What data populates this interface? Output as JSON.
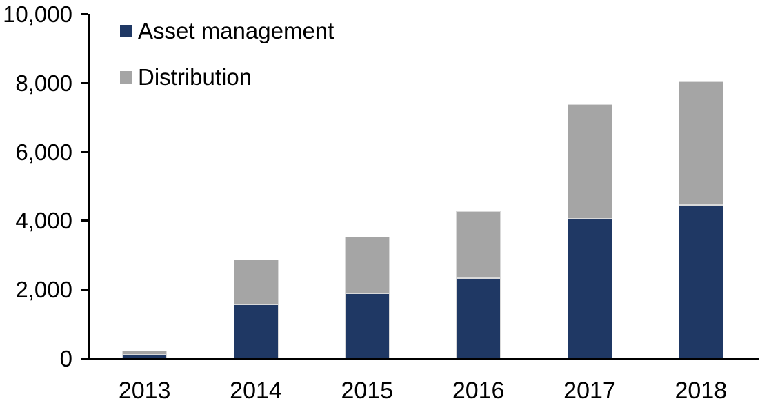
{
  "chart_data": {
    "type": "bar",
    "stacked": true,
    "title": "",
    "xlabel": "",
    "ylabel": "",
    "categories": [
      "2013",
      "2014",
      "2015",
      "2016",
      "2017",
      "2018"
    ],
    "series": [
      {
        "name": "Asset management",
        "color": "#1f3864",
        "values": [
          100,
          1570,
          1880,
          2320,
          4050,
          4440
        ]
      },
      {
        "name": "Distribution",
        "color": "#a5a5a5",
        "values": [
          115,
          1300,
          1640,
          1940,
          3330,
          3590
        ]
      }
    ],
    "totals": [
      215,
      2870,
      3520,
      4260,
      7380,
      8030
    ],
    "ylim": [
      0,
      10000
    ],
    "yticks": [
      {
        "value": 0,
        "label": "0"
      },
      {
        "value": 2000,
        "label": "2,000"
      },
      {
        "value": 4000,
        "label": "4,000"
      },
      {
        "value": 6000,
        "label": "6,000"
      },
      {
        "value": 8000,
        "label": "8,000"
      },
      {
        "value": 10000,
        "label": "10,000"
      }
    ],
    "grid": false,
    "legend_position": "top-left"
  },
  "colors": {
    "axis": "#000000",
    "background": "#ffffff",
    "bar_border": "#d9d9d9",
    "text": "#000000"
  }
}
